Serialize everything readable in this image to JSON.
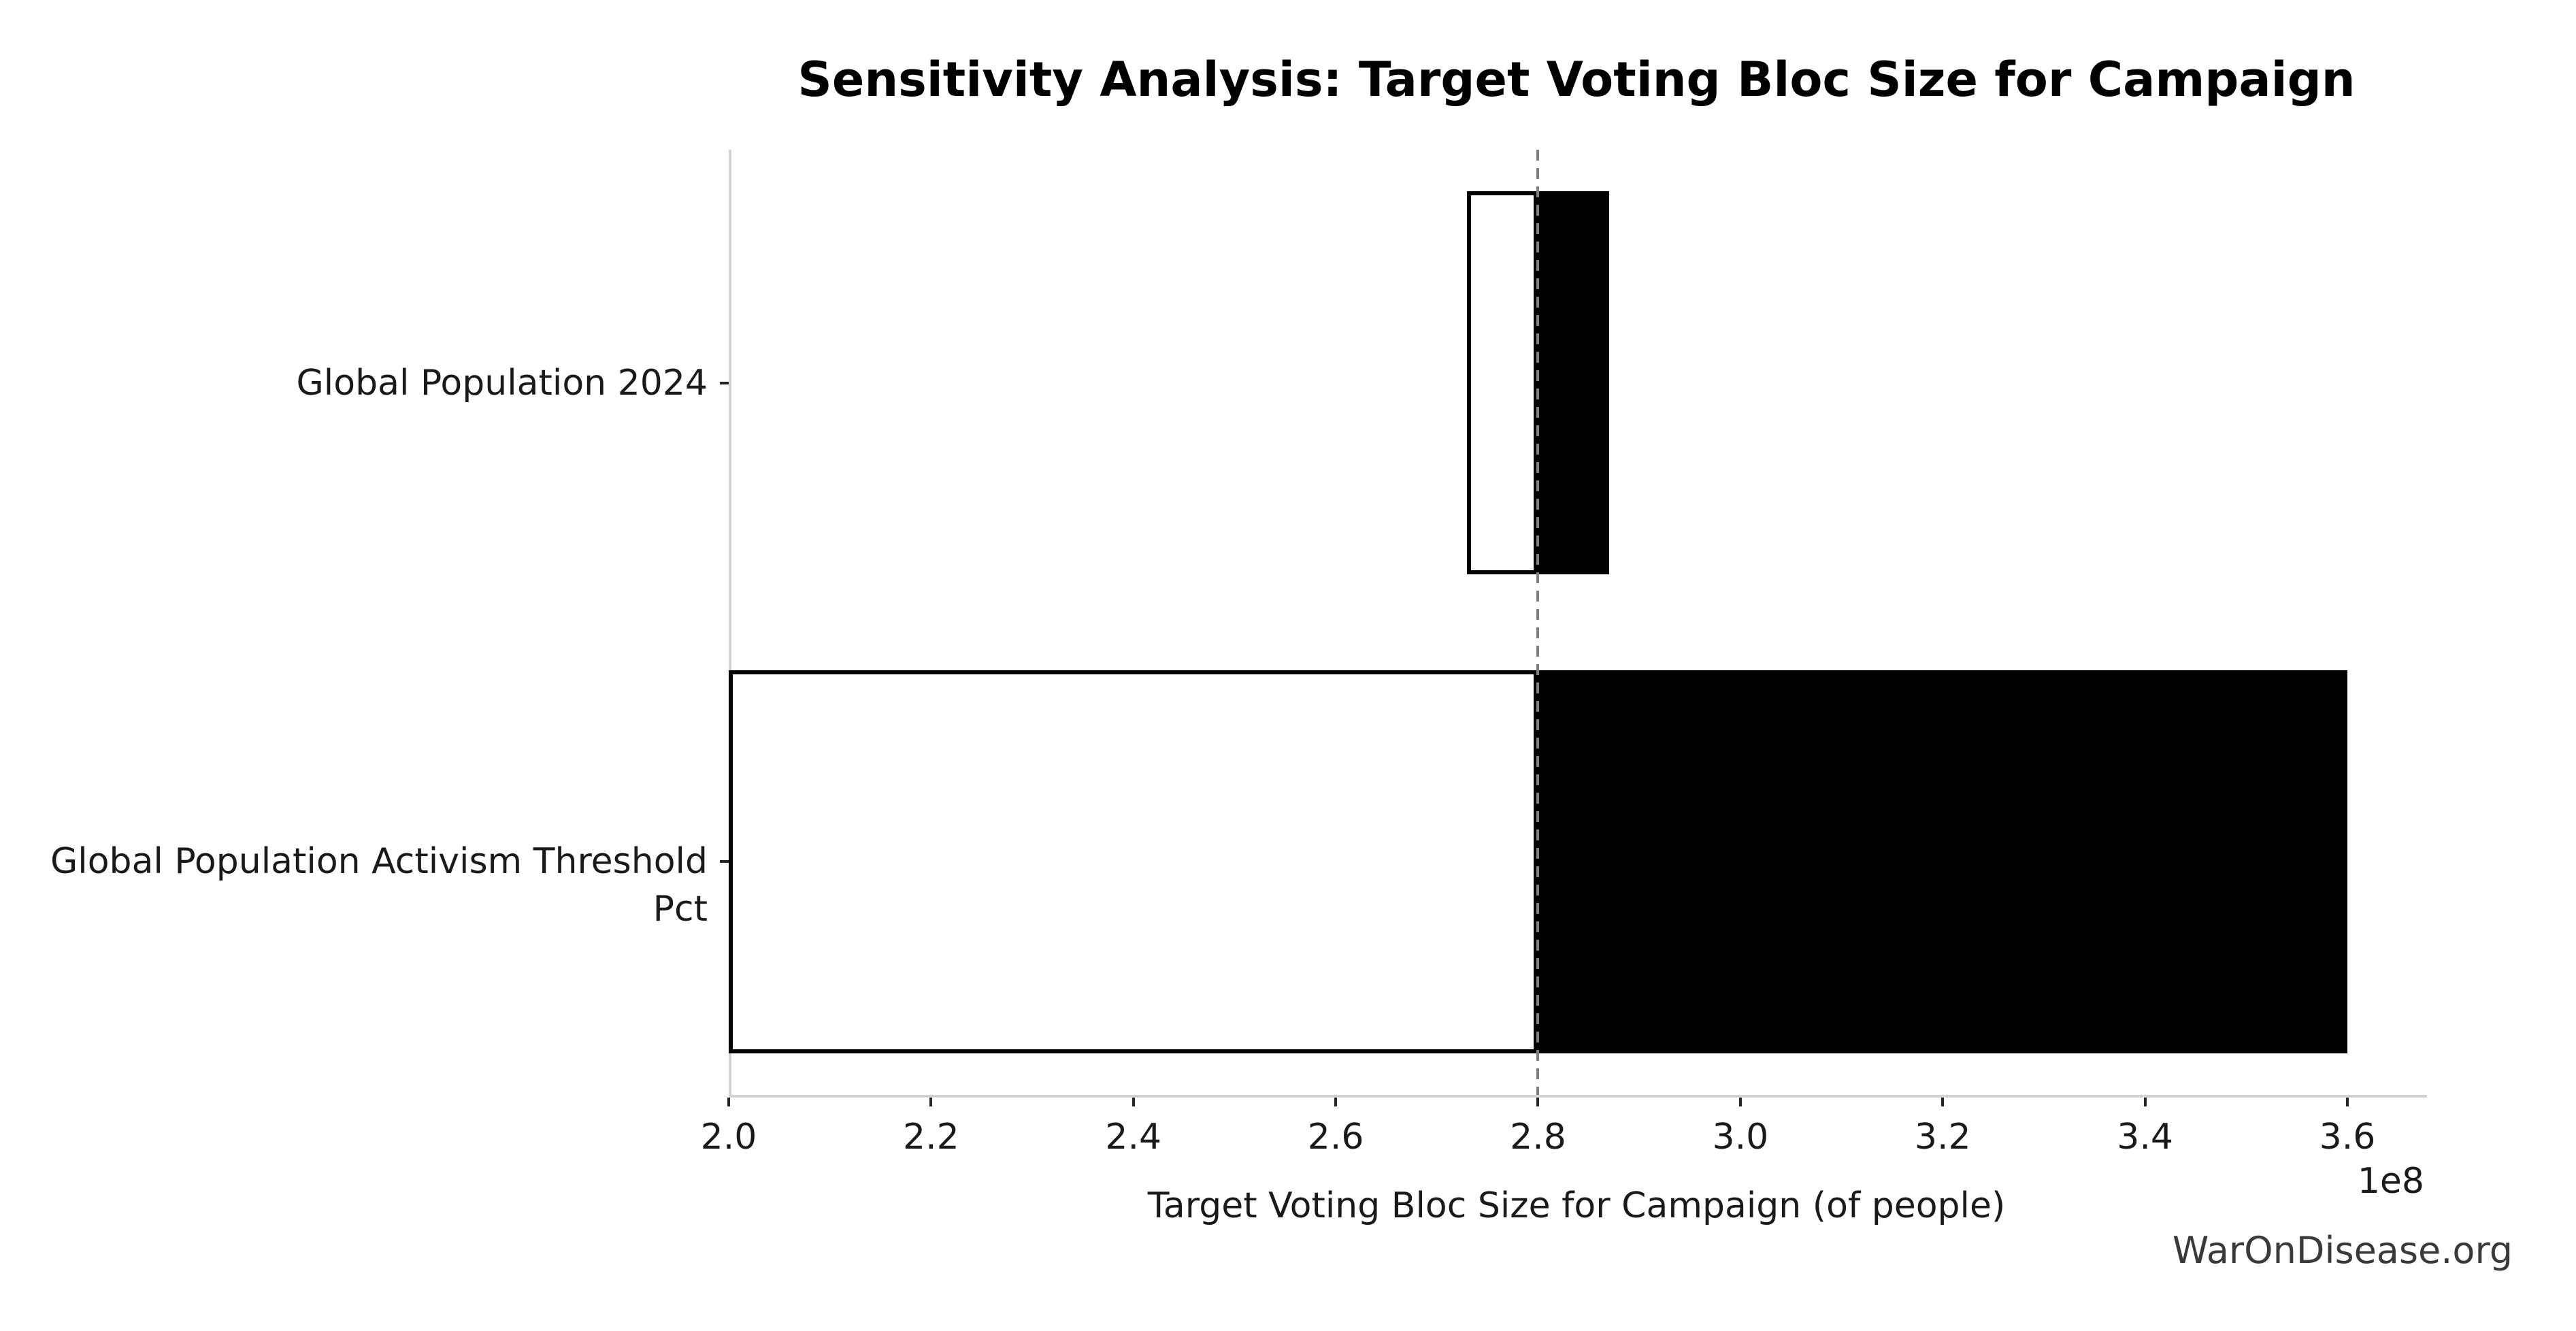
{
  "chart_data": {
    "type": "bar",
    "variant": "tornado-sensitivity-horizontal",
    "title": "Sensitivity Analysis: Target Voting Bloc Size for Campaign",
    "xlabel": "Target Voting Bloc Size for Campaign (of people)",
    "x_offset_label": "1e8",
    "x_unit_multiplier": 100000000,
    "baseline_value": 2.8,
    "xlim": [
      2.0,
      3.676
    ],
    "grid": false,
    "legend": null,
    "x_ticks": [
      {
        "value": 2.0,
        "label": "2.0"
      },
      {
        "value": 2.2,
        "label": "2.2"
      },
      {
        "value": 2.4,
        "label": "2.4"
      },
      {
        "value": 2.6,
        "label": "2.6"
      },
      {
        "value": 2.8,
        "label": "2.8"
      },
      {
        "value": 3.0,
        "label": "3.0"
      },
      {
        "value": 3.2,
        "label": "3.2"
      },
      {
        "value": 3.4,
        "label": "3.4"
      },
      {
        "value": 3.6,
        "label": "3.6"
      }
    ],
    "bars": [
      {
        "label": "Global Population 2024",
        "low": 2.73,
        "high": 2.87
      },
      {
        "label": "Global Population Activism Threshold Pct",
        "low": 2.0,
        "high": 3.6
      }
    ],
    "colors": {
      "low_segment_fill": "#ffffff",
      "high_segment_fill": "#000000",
      "bar_edge": "#000000",
      "spine": "#d3d3d3",
      "tick_mark": "#262626",
      "baseline_dash": "#7f7f7f",
      "text": "#1a1a1a",
      "watermark_text": "#3a3a3a"
    },
    "watermark": "WarOnDisease.org"
  }
}
